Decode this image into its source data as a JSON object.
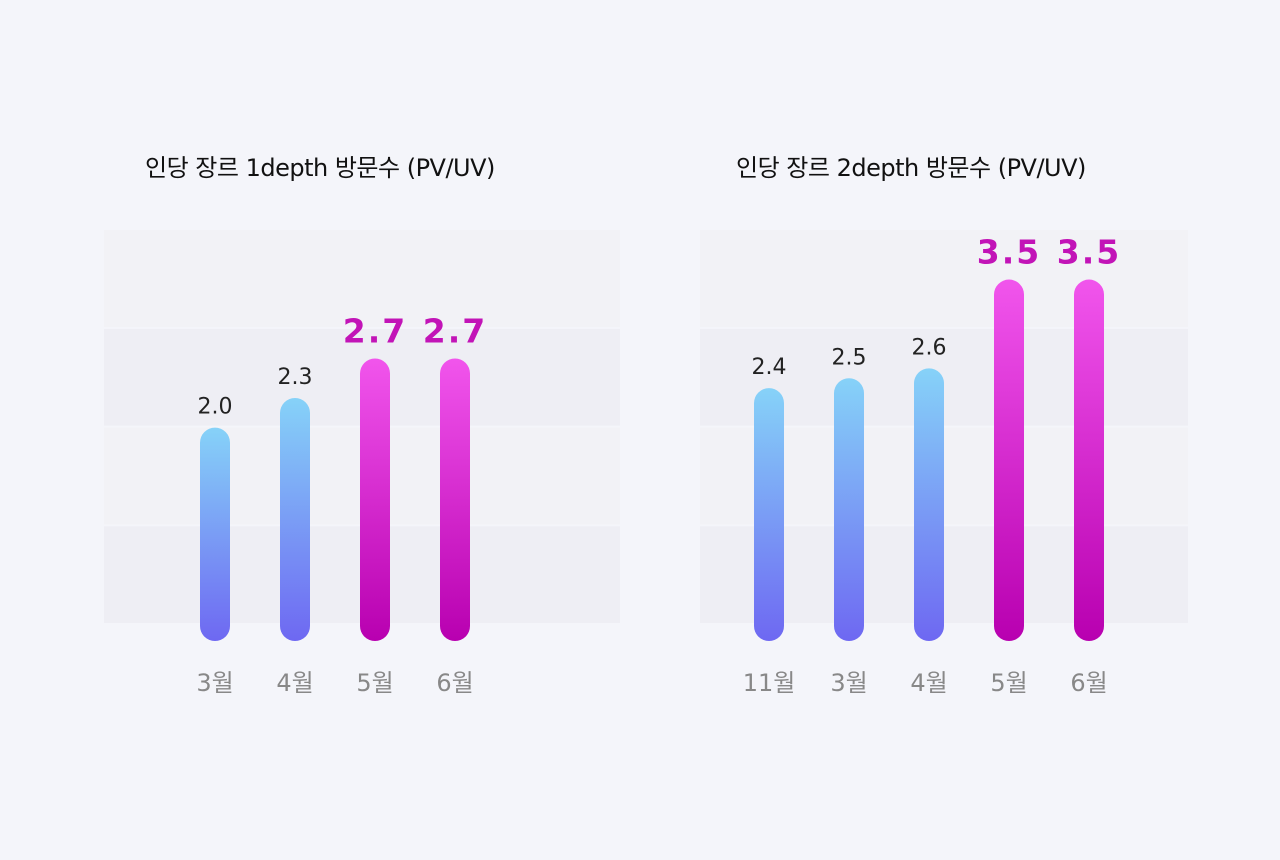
{
  "chart_data": [
    {
      "type": "bar",
      "title": "인당 장르 1depth 방문수 (PV/UV)",
      "categories": [
        "3월",
        "4월",
        "5월",
        "6월"
      ],
      "values": [
        2.0,
        2.3,
        2.7,
        2.7
      ],
      "value_labels": [
        "2.0",
        "2.3",
        "2.7",
        "2.7"
      ],
      "highlighted": [
        false,
        false,
        true,
        true
      ],
      "ylim": [
        0,
        4
      ],
      "grid": true
    },
    {
      "type": "bar",
      "title": "인당 장르 2depth 방문수 (PV/UV)",
      "categories": [
        "11월",
        "3월",
        "4월",
        "5월",
        "6월"
      ],
      "values": [
        2.4,
        2.5,
        2.6,
        3.5,
        3.5
      ],
      "value_labels": [
        "2.4",
        "2.5",
        "2.6",
        "3.5",
        "3.5"
      ],
      "highlighted": [
        false,
        false,
        false,
        true,
        true
      ],
      "ylim": [
        0,
        4
      ],
      "grid": true
    }
  ],
  "colors": {
    "normal_top": "#86d2f8",
    "normal_bottom": "#6e68f2",
    "highlight_top": "#f155ec",
    "highlight_bottom": "#b800b0",
    "highlight_label": "#c214b7",
    "normal_label": "#222222",
    "category_label": "#888888",
    "band_light": "#f2f2f6",
    "band_dark": "#eeeef4"
  }
}
